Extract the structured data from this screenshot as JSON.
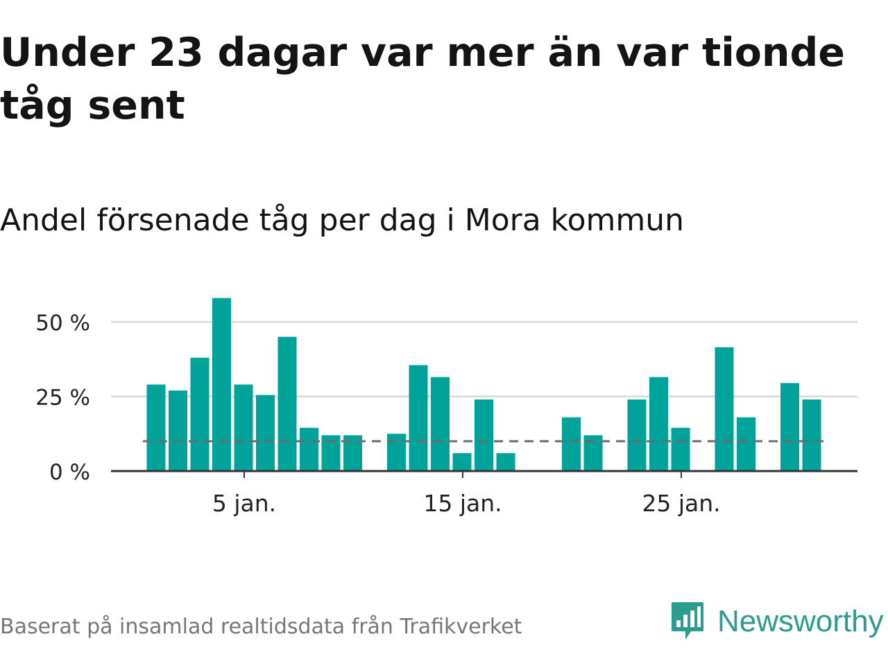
{
  "title": "Under 23 dagar var mer än var tionde tåg sent",
  "subtitle": "Andel försenade tåg per dag i Mora kommun",
  "source": "Baserat på insamlad realtidsdata från Trafikverket",
  "logo": {
    "text": "Newsworthy",
    "icon": "newsworthy-logo-icon",
    "color": "#2a9d8f"
  },
  "colors": {
    "bar": "#00a39a",
    "reference_line": "#6b6b6b",
    "grid": "#dddddd",
    "axis": "#333333"
  },
  "chart_data": {
    "type": "bar",
    "title": "",
    "xlabel": "",
    "ylabel": "",
    "x": [
      1,
      2,
      3,
      4,
      5,
      6,
      7,
      8,
      9,
      10,
      11,
      12,
      13,
      14,
      15,
      16,
      17,
      18,
      19,
      20,
      21,
      22,
      23,
      24,
      25,
      26,
      27,
      28,
      29,
      30,
      31
    ],
    "values": [
      29,
      27,
      38,
      58,
      29,
      25.5,
      45,
      14.5,
      12,
      12,
      null,
      12.5,
      35.5,
      31.5,
      6,
      24,
      6,
      null,
      null,
      18,
      12,
      null,
      24,
      31.5,
      14.5,
      null,
      41.5,
      18,
      null,
      29.5,
      24
    ],
    "reference_line": 10,
    "ylim": [
      0,
      60
    ],
    "yticks": [
      0,
      25,
      50
    ],
    "ytick_labels": [
      "0 %",
      "25 %",
      "50 %"
    ],
    "xticks": [
      5,
      15,
      25
    ],
    "xtick_labels": [
      "5 jan.",
      "15 jan.",
      "25 jan."
    ],
    "grid": true
  }
}
